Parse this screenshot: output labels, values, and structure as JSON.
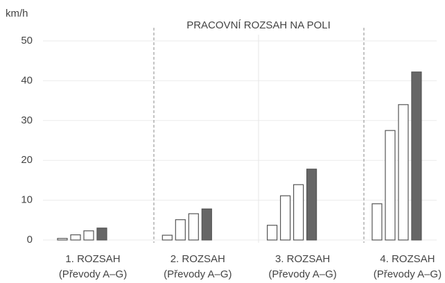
{
  "chart_data": {
    "type": "bar",
    "title": "PRACOVNÍ ROZSAH NA POLI",
    "y_label": "km/h",
    "categories": [
      "1. ROZSAH",
      "2. ROZSAH",
      "3. ROZSAH",
      "4. ROZSAH"
    ],
    "category_sublabels": [
      "(Převody A–G)",
      "(Převody A–G)",
      "(Převody A–G)",
      "(Převody A–G)"
    ],
    "series": [
      {
        "color": "#ffffff",
        "values": [
          0.4,
          1.2,
          3.7,
          9.1
        ]
      },
      {
        "color": "#ffffff",
        "values": [
          1.3,
          5.1,
          11.1,
          27.5
        ]
      },
      {
        "color": "#ffffff",
        "values": [
          2.3,
          6.6,
          13.9,
          34
        ]
      },
      {
        "color": "#666666",
        "values": [
          3.0,
          7.8,
          17.8,
          42.2
        ]
      }
    ],
    "ylim": [
      0,
      50
    ],
    "yticks": [
      0,
      10,
      20,
      30,
      40,
      50
    ],
    "grid": true
  }
}
